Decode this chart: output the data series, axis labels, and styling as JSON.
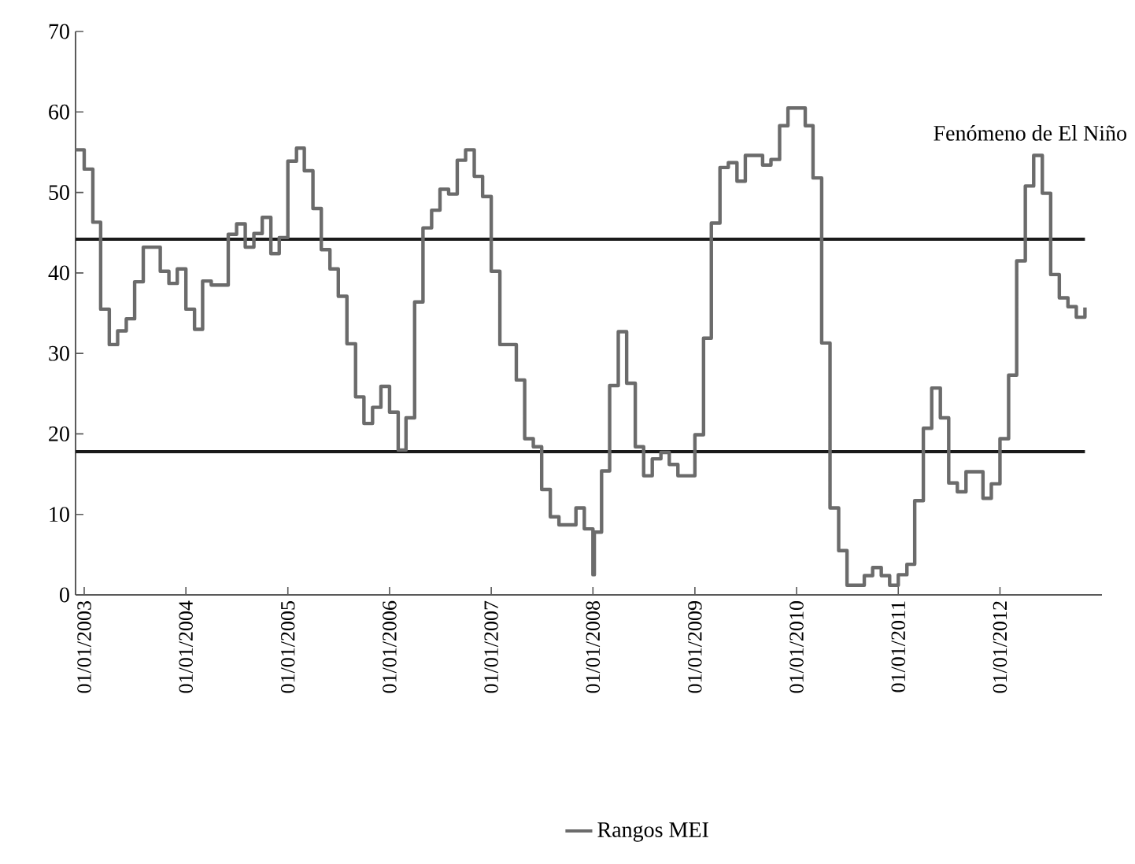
{
  "chart_data": {
    "type": "step",
    "xlim": [
      "2002-12-01",
      "2013-01-01"
    ],
    "xticks": [
      {
        "value": "2003-01-01",
        "label": "01/01/2003"
      },
      {
        "value": "2004-01-01",
        "label": "01/01/2004"
      },
      {
        "value": "2005-01-01",
        "label": "01/01/2005"
      },
      {
        "value": "2006-01-01",
        "label": "01/01/2006"
      },
      {
        "value": "2007-01-01",
        "label": "01/01/2007"
      },
      {
        "value": "2008-01-01",
        "label": "01/01/2008"
      },
      {
        "value": "2009-01-01",
        "label": "01/01/2009"
      },
      {
        "value": "2010-01-01",
        "label": "01/01/2010"
      },
      {
        "value": "2011-01-01",
        "label": "01/01/2011"
      },
      {
        "value": "2012-01-01",
        "label": "01/01/2012"
      }
    ],
    "ylim": [
      0,
      70
    ],
    "yticks": [
      0,
      10,
      20,
      30,
      40,
      50,
      60,
      70
    ],
    "legend": "bottom",
    "ref_lines": [
      {
        "axis": "y",
        "value": 44.2,
        "color": "#1a1a1a"
      },
      {
        "axis": "y",
        "value": 17.8,
        "color": "#1a1a1a"
      }
    ],
    "annotations": [
      "Fenómeno de El Niño"
    ],
    "series": [
      {
        "name": "Rangos MEI",
        "color": "#6b6b6b",
        "x": [
          "2002-12",
          "2003-01",
          "2003-02",
          "2003-03",
          "2003-04",
          "2003-05",
          "2003-06",
          "2003-07",
          "2003-08",
          "2003-09",
          "2003-10",
          "2003-11",
          "2003-12",
          "2004-01",
          "2004-02",
          "2004-03",
          "2004-04",
          "2004-05",
          "2004-06",
          "2004-07",
          "2004-08",
          "2004-09",
          "2004-10",
          "2004-11",
          "2004-12",
          "2005-01",
          "2005-02",
          "2005-03",
          "2005-04",
          "2005-05",
          "2005-06",
          "2005-07",
          "2005-08",
          "2005-09",
          "2005-10",
          "2005-11",
          "2005-12",
          "2006-01",
          "2006-02",
          "2006-03",
          "2006-04",
          "2006-05",
          "2006-06",
          "2006-07",
          "2006-08",
          "2006-09",
          "2006-10",
          "2006-11",
          "2006-12",
          "2007-01",
          "2007-02",
          "2007-03",
          "2007-04",
          "2007-05",
          "2007-06",
          "2007-07",
          "2007-08",
          "2007-09",
          "2007-10",
          "2007-11",
          "2007-12",
          "2008-01-01",
          "2008-01-06",
          "2008-02",
          "2008-03",
          "2008-04",
          "2008-05",
          "2008-06",
          "2008-07",
          "2008-08",
          "2008-09",
          "2008-10",
          "2008-11",
          "2008-12",
          "2009-01",
          "2009-02",
          "2009-03",
          "2009-04",
          "2009-05",
          "2009-06",
          "2009-07",
          "2009-08",
          "2009-09",
          "2009-10",
          "2009-11",
          "2009-12",
          "2010-01",
          "2010-02",
          "2010-03",
          "2010-04",
          "2010-05",
          "2010-06",
          "2010-07",
          "2010-08",
          "2010-09",
          "2010-10",
          "2010-11",
          "2010-12",
          "2011-01",
          "2011-02",
          "2011-03",
          "2011-04",
          "2011-05",
          "2011-06",
          "2011-07",
          "2011-08",
          "2011-09",
          "2011-10",
          "2011-11",
          "2011-12",
          "2012-01",
          "2012-02",
          "2012-03",
          "2012-04",
          "2012-05",
          "2012-06",
          "2012-07",
          "2012-08",
          "2012-09",
          "2012-10",
          "2012-11"
        ],
        "values": [
          55.3,
          52.9,
          46.3,
          35.5,
          31.1,
          32.8,
          34.3,
          38.9,
          43.2,
          43.2,
          40.2,
          38.7,
          40.5,
          35.5,
          33.0,
          39.0,
          38.5,
          38.5,
          44.8,
          46.1,
          43.2,
          44.9,
          46.9,
          42.4,
          44.4,
          53.9,
          55.5,
          52.7,
          48.0,
          42.9,
          40.5,
          37.1,
          31.2,
          24.6,
          21.3,
          23.3,
          25.9,
          22.7,
          18.0,
          22.0,
          36.4,
          45.6,
          47.8,
          50.4,
          49.8,
          54.0,
          55.3,
          52.0,
          49.5,
          40.2,
          31.1,
          31.1,
          26.7,
          19.4,
          18.4,
          13.1,
          9.7,
          8.7,
          8.7,
          10.8,
          8.2,
          2.5,
          7.8,
          15.4,
          26.0,
          32.7,
          26.3,
          18.4,
          14.8,
          16.9,
          17.7,
          16.2,
          14.8,
          14.8,
          19.9,
          31.9,
          46.2,
          53.1,
          53.7,
          51.4,
          54.6,
          54.6,
          53.4,
          54.1,
          58.3,
          60.5,
          60.5,
          58.3,
          51.8,
          31.3,
          10.8,
          5.5,
          1.2,
          1.2,
          2.4,
          3.4,
          2.4,
          1.2,
          2.5,
          3.8,
          11.7,
          20.7,
          25.7,
          22.0,
          13.9,
          12.8,
          15.3,
          15.3,
          12.0,
          13.8,
          19.4,
          27.3,
          41.5,
          50.8,
          54.6,
          49.9,
          39.8,
          36.9,
          35.8,
          34.5,
          35.7
        ]
      }
    ]
  }
}
